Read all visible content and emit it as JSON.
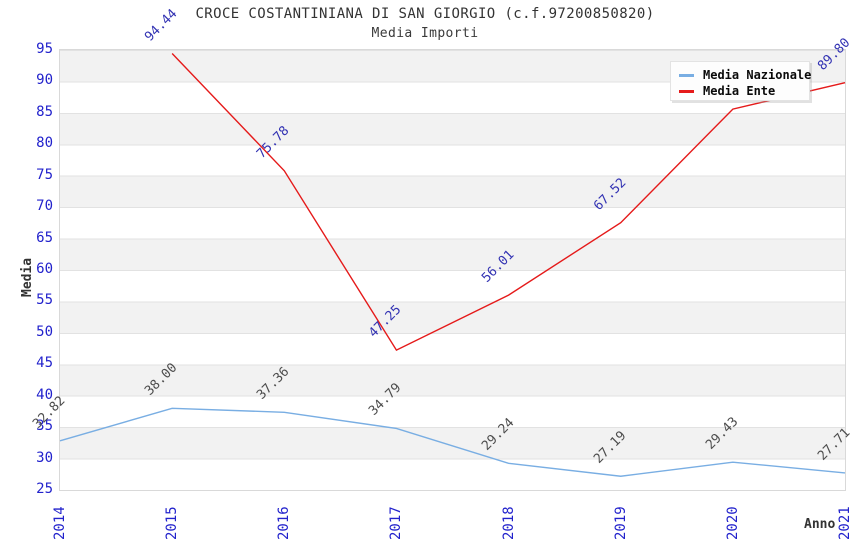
{
  "chart_data": {
    "type": "line",
    "title": "CROCE COSTANTINIANA DI SAN GIORGIO (c.f.97200850820)",
    "subtitle": "Media Importi",
    "xlabel": "Anno",
    "ylabel": "Media",
    "x_categories": [
      "2014",
      "2015",
      "2016",
      "2017",
      "2018",
      "2019",
      "2020",
      "2021"
    ],
    "ylim": [
      25,
      95
    ],
    "ytick_step": 5,
    "grid": "horizontal-bands",
    "band_colors": [
      "#f2f2f2",
      "#ffffff"
    ],
    "tick_label_color": "#2222cc",
    "legend_position": "top-right",
    "series": [
      {
        "name": "Media Nazionale",
        "color": "#79AEE3",
        "label_color": "#4d4d4d",
        "x": [
          "2014",
          "2015",
          "2016",
          "2017",
          "2018",
          "2019",
          "2020",
          "2021"
        ],
        "values": [
          32.82,
          38.0,
          37.36,
          34.79,
          29.24,
          27.19,
          29.43,
          27.71
        ],
        "point_labels": [
          "32.82",
          "38.00",
          "37.36",
          "34.79",
          "29.24",
          "27.19",
          "29.43",
          "27.71"
        ]
      },
      {
        "name": "Media Ente",
        "color": "#E51A1A",
        "label_color": "#3333B3",
        "x": [
          "2015",
          "2016",
          "2017",
          "2018",
          "2019",
          "2020",
          "2021"
        ],
        "values": [
          94.44,
          75.78,
          47.25,
          56.01,
          67.52,
          85.6,
          89.8
        ],
        "point_labels": [
          "94.44",
          "75.78",
          "47.25",
          "56.01",
          "67.52",
          "",
          "89.80"
        ]
      }
    ]
  }
}
